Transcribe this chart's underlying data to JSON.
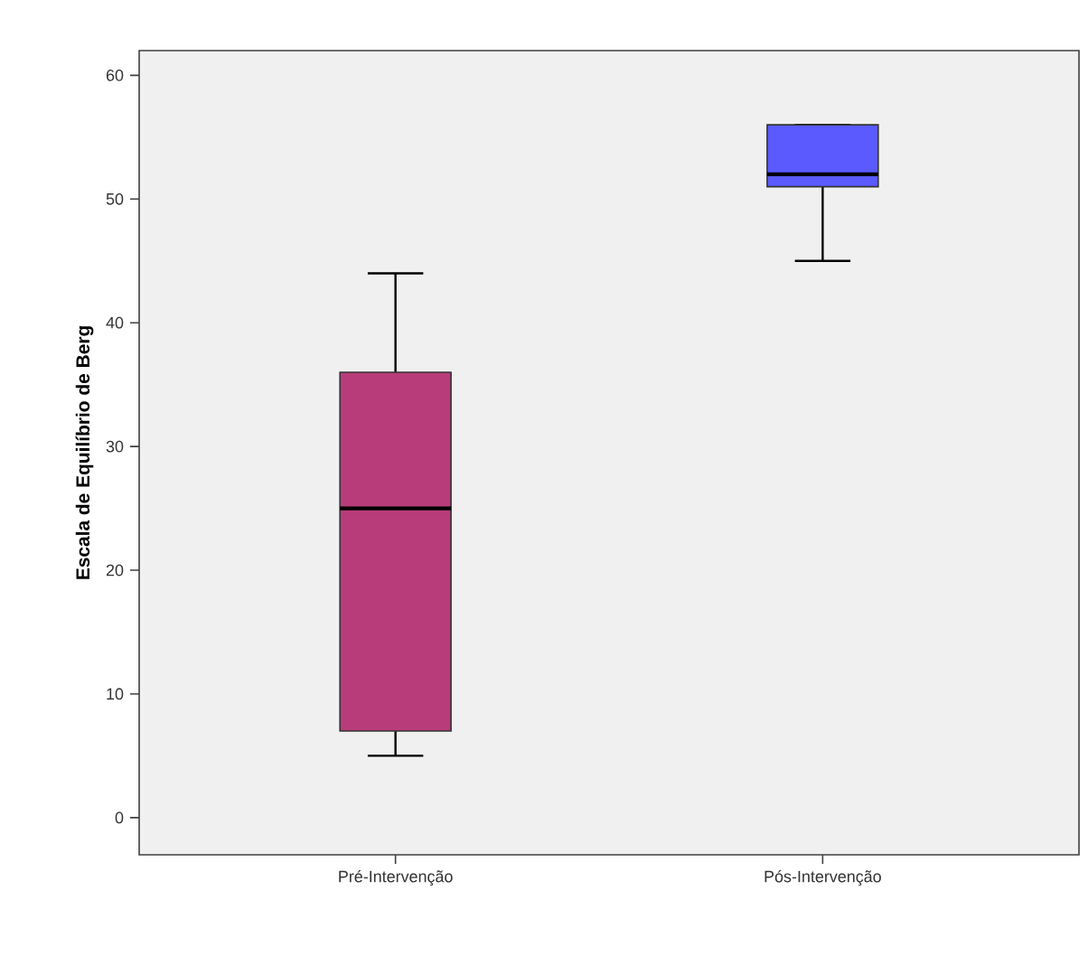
{
  "chart_data": {
    "type": "box",
    "ylabel": "Escala de Equilíbrio de Berg",
    "categories": [
      "Pré-Intervenção",
      "Pós-Intervenção"
    ],
    "colors": [
      "#b83c7a",
      "#5a5aff"
    ],
    "boxes": [
      {
        "low": 5,
        "q1": 7,
        "median": 25,
        "q3": 36,
        "high": 44
      },
      {
        "low": 45,
        "q1": 51,
        "median": 52,
        "q3": 56,
        "high": 56
      }
    ],
    "ylim": [
      -3,
      62
    ],
    "yticks": [
      0,
      10,
      20,
      30,
      40,
      50,
      60
    ]
  }
}
